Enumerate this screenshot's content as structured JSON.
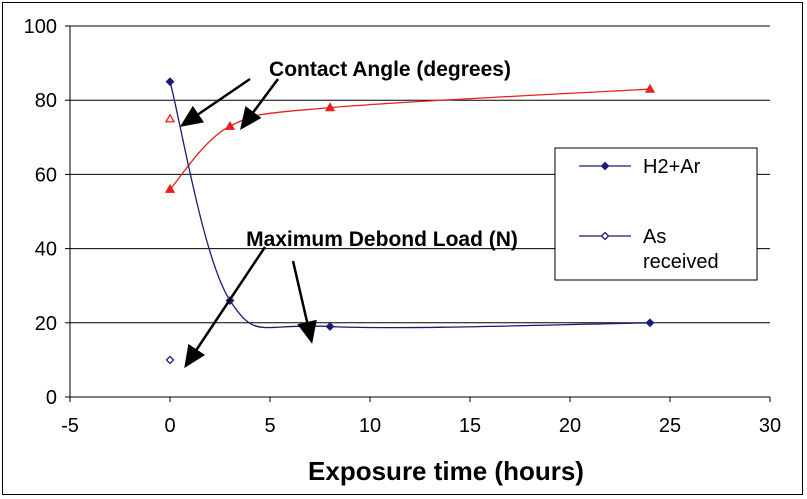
{
  "chart_data": {
    "type": "scatter",
    "title": "",
    "xlabel": "Exposure time (hours)",
    "ylabel": "",
    "xlim": [
      -5,
      30
    ],
    "ylim": [
      0,
      100
    ],
    "xticks": [
      -5,
      0,
      5,
      10,
      15,
      20,
      25,
      30
    ],
    "yticks": [
      0,
      20,
      40,
      60,
      80,
      100
    ],
    "grid": "horizontal",
    "legend_position": "right",
    "series": [
      {
        "name": "H2+Ar",
        "marker": "filled-triangle",
        "color": "#e8201c",
        "curve": "smooth",
        "x": [
          0,
          3,
          8,
          24
        ],
        "y": [
          56,
          73,
          78,
          83
        ]
      },
      {
        "name": "H2+Ar",
        "marker": "filled-diamond",
        "color": "#1a1a7a",
        "curve": "smooth",
        "x": [
          0,
          3,
          8,
          24
        ],
        "y": [
          85,
          26,
          19,
          20
        ]
      },
      {
        "name": "As received",
        "marker": "open-triangle",
        "color": "#e8201c",
        "x": [
          0
        ],
        "y": [
          75
        ]
      },
      {
        "name": "As received",
        "marker": "open-diamond",
        "color": "#1a1a7a",
        "x": [
          0
        ],
        "y": [
          10
        ]
      }
    ],
    "legend": [
      {
        "label": "H2+Ar",
        "marker": "filled-diamond",
        "color": "#1a1a7a"
      },
      {
        "label": "As\nreceived",
        "marker": "open-diamond",
        "color": "#1a1a7a"
      }
    ],
    "annotations": [
      {
        "text": "Contact Angle (degrees)"
      },
      {
        "text": "Maximum Debond Load (N)"
      }
    ]
  }
}
